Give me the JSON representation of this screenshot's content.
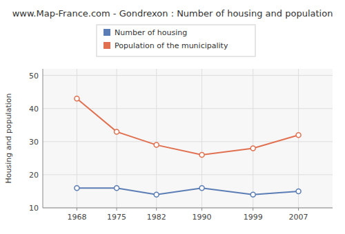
{
  "chart_data": {
    "type": "line",
    "title": "www.Map-France.com - Gondrexon : Number of housing and population",
    "ylabel": "Housing and population",
    "x": [
      1968,
      1975,
      1982,
      1990,
      1999,
      2007
    ],
    "series": [
      {
        "name": "Number of housing",
        "color": "#5b7db5",
        "marker": "circle",
        "values": [
          16,
          16,
          14,
          16,
          14,
          15
        ]
      },
      {
        "name": "Population of the municipality",
        "color": "#e07050",
        "marker": "circle",
        "values": [
          43,
          33,
          29,
          26,
          28,
          32
        ]
      }
    ],
    "xlim": [
      1962,
      2013
    ],
    "xticks": [
      1968,
      1975,
      1982,
      1990,
      1999,
      2007
    ],
    "ylim": [
      10,
      52
    ],
    "yticks": [
      10,
      20,
      30,
      40,
      50
    ],
    "grid": true,
    "legend": "top"
  }
}
